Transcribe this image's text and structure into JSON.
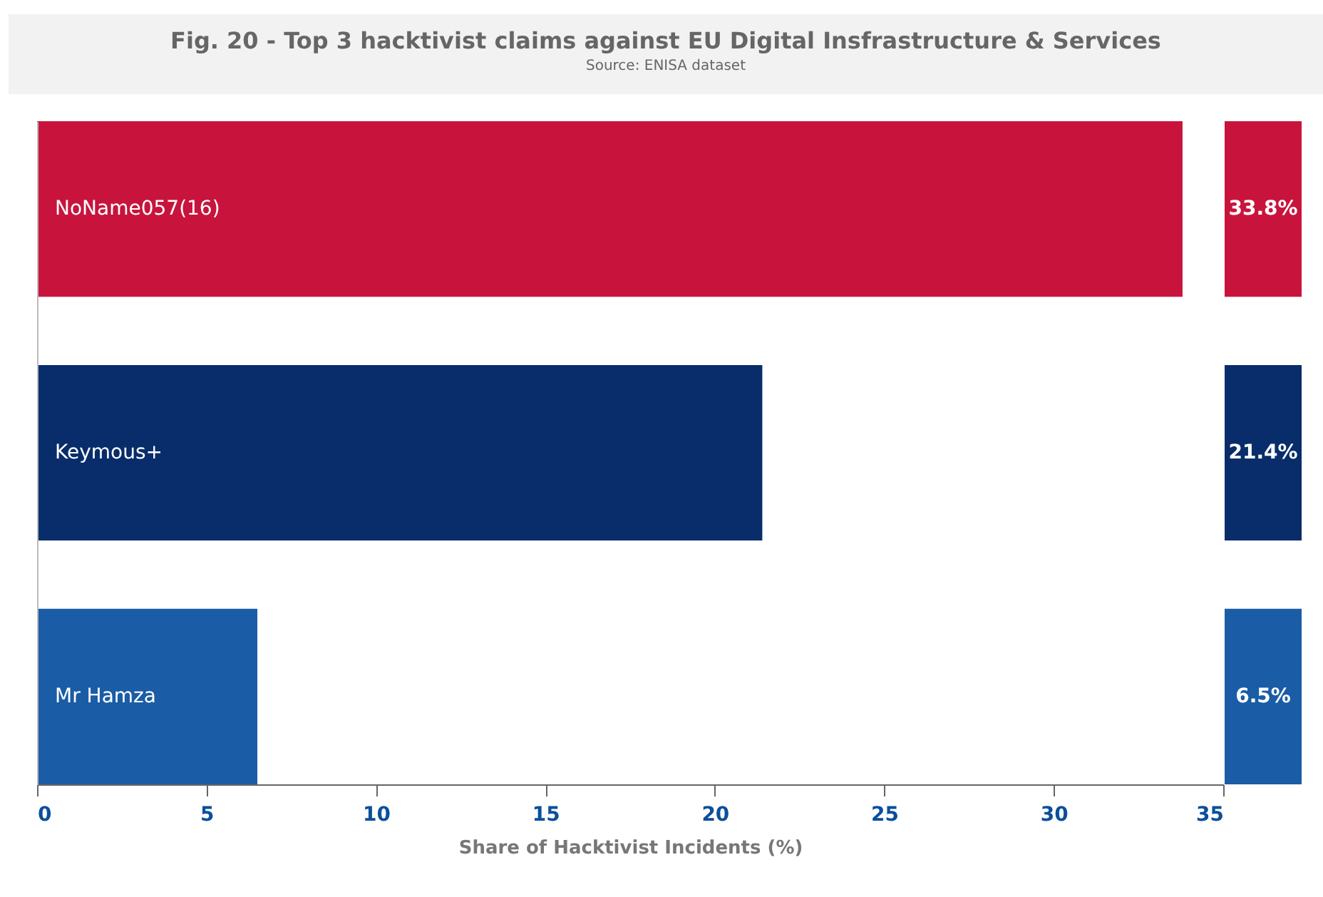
{
  "chart_data": {
    "type": "bar",
    "orientation": "horizontal",
    "title": "Fig. 20 - Top 3 hacktivist claims against EU Digital Insfrastructure & Services",
    "subtitle": "Source: ENISA dataset",
    "xlabel": "Share of Hacktivist Incidents (%)",
    "categories": [
      "NoName057(16)",
      "Keymous+",
      "Mr Hamza"
    ],
    "values": [
      33.8,
      21.4,
      6.5
    ],
    "colors": [
      "#c8143c",
      "#082d6a",
      "#1a5ca6"
    ],
    "value_labels": [
      "33.8%",
      "21.4%",
      "6.5%"
    ],
    "xlim": [
      0,
      35
    ],
    "xticks": [
      0,
      5,
      10,
      15,
      20,
      25,
      30,
      35
    ],
    "grid": false
  }
}
